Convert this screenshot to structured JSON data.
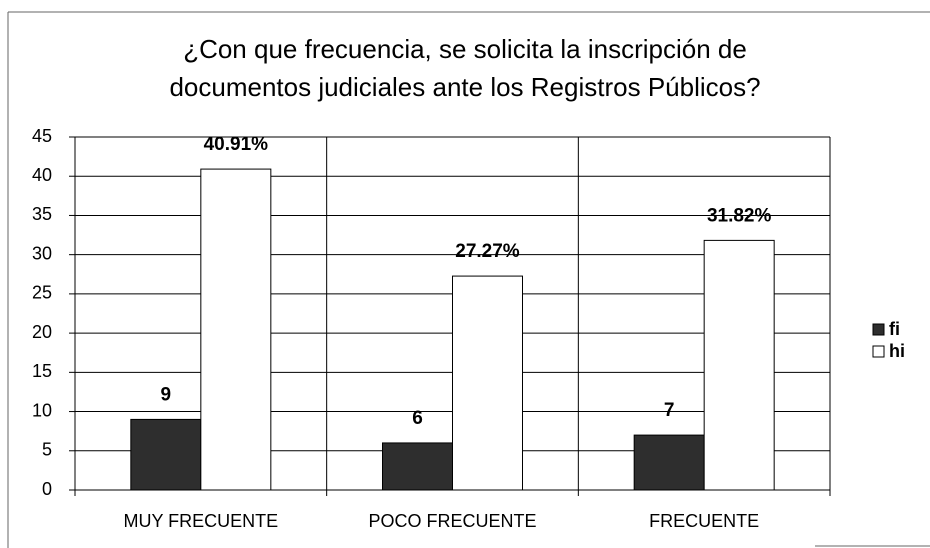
{
  "chart_data": {
    "type": "bar",
    "title": "¿Con que frecuencia, se solicita la inscripción de documentos judiciales ante los Registros Públicos?",
    "categories": [
      "MUY FRECUENTE",
      "POCO FRECUENTE",
      "FRECUENTE"
    ],
    "series": [
      {
        "name": "fi",
        "color": "#2e2e2e",
        "values": [
          9,
          6,
          7
        ]
      },
      {
        "name": "hi",
        "color": "#ffffff",
        "values": [
          40.91,
          27.27,
          31.82
        ],
        "value_labels": [
          "40.91%",
          "27.27%",
          "31.82%"
        ]
      }
    ],
    "ylim": [
      0,
      45
    ],
    "yticks": [
      0,
      5,
      10,
      15,
      20,
      25,
      30,
      35,
      40,
      45
    ],
    "grid": true,
    "legend": "right"
  }
}
